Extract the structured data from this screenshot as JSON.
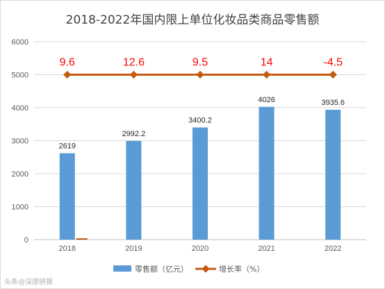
{
  "chart_data": {
    "type": "bar",
    "title": "2018-2022年国内限上单位化妆品类商品零售额",
    "categories": [
      "2018",
      "2019",
      "2020",
      "2021",
      "2022"
    ],
    "ylim": [
      0,
      6000
    ],
    "yticks": [
      0,
      1000,
      2000,
      3000,
      4000,
      5000,
      6000
    ],
    "grid": true,
    "legend_position": "bottom",
    "series": [
      {
        "name": "零售额（亿元）",
        "type": "bar",
        "color": "#5b9bd5",
        "values": [
          2619,
          2992.2,
          3400.2,
          4026,
          3935.6
        ],
        "labels": [
          "2619",
          "2992.2",
          "3400.2",
          "4026",
          "3935.6"
        ]
      },
      {
        "name": "增长率（%）",
        "type": "line",
        "color": "#c55a11",
        "values": [
          9.6,
          12.6,
          9.5,
          14,
          -4.5
        ],
        "labels": [
          "9.6",
          "12.6",
          "9.5",
          "14",
          "-4.5"
        ],
        "label_color": "#ff0000",
        "plotted_at": 5000
      }
    ]
  },
  "watermark": "头条@深度研报"
}
